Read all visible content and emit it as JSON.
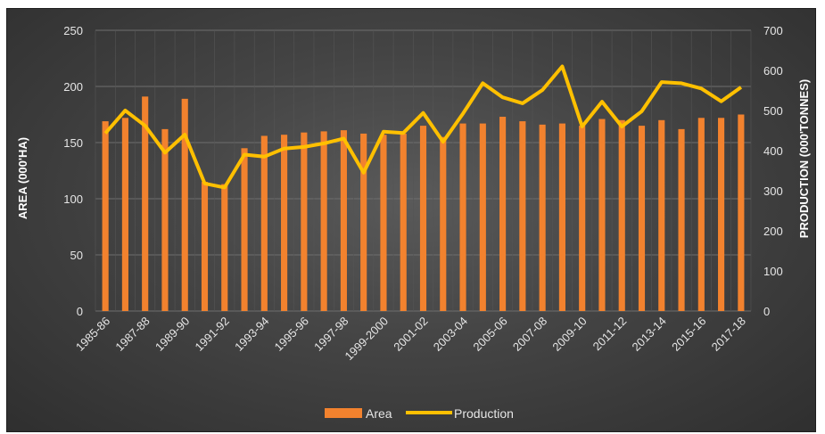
{
  "chart_data": {
    "type": "bar+line",
    "categories": [
      "1985-86",
      "1986-87",
      "1987-88",
      "1988-89",
      "1989-90",
      "1990-91",
      "1991-92",
      "1992-93",
      "1993-94",
      "1994-95",
      "1995-96",
      "1996-97",
      "1997-98",
      "1998-99",
      "1999-2000",
      "2000-01",
      "2001-02",
      "2002-03",
      "2003-04",
      "2004-05",
      "2005-06",
      "2006-07",
      "2007-08",
      "2008-09",
      "2009-10",
      "2010-11",
      "2011-12",
      "2012-13",
      "2013-14",
      "2014-15",
      "2015-16",
      "2016-17",
      "2017-18"
    ],
    "shown_tick_labels": [
      "1985-86",
      "1987-88",
      "1989-90",
      "1991-92",
      "1993-94",
      "1995-96",
      "1997-98",
      "1999-2000",
      "2001-02",
      "2003-04",
      "2005-06",
      "2007-08",
      "2009-10",
      "2011-12",
      "2013-14",
      "2015-16",
      "2017-18"
    ],
    "series": [
      {
        "name": "Area",
        "type": "bar",
        "axis": "left",
        "color": "#f2822e",
        "values": [
          169,
          172,
          191,
          162,
          189,
          115,
          113,
          145,
          156,
          157,
          159,
          160,
          161,
          158,
          157,
          158,
          165,
          155,
          167,
          167,
          173,
          169,
          166,
          167,
          165,
          171,
          170,
          165,
          170,
          162,
          172,
          172,
          175
        ]
      },
      {
        "name": "Production",
        "type": "line",
        "axis": "right",
        "color": "#ffc000",
        "values": [
          443,
          500,
          462,
          395,
          440,
          318,
          308,
          390,
          385,
          405,
          409,
          418,
          430,
          345,
          447,
          444,
          494,
          422,
          492,
          568,
          533,
          518,
          551,
          610,
          460,
          522,
          460,
          498,
          571,
          568,
          555,
          523,
          558
        ]
      }
    ],
    "y_left": {
      "label": "AREA (000'HA)",
      "min": 0,
      "max": 250,
      "ticks": [
        0,
        50,
        100,
        150,
        200,
        250
      ]
    },
    "y_right": {
      "label": "PRODUCTION (000'TONNES)",
      "min": 0,
      "max": 700,
      "ticks": [
        0,
        100,
        200,
        300,
        400,
        500,
        600,
        700
      ]
    },
    "grid": true,
    "legend_position": "bottom"
  }
}
